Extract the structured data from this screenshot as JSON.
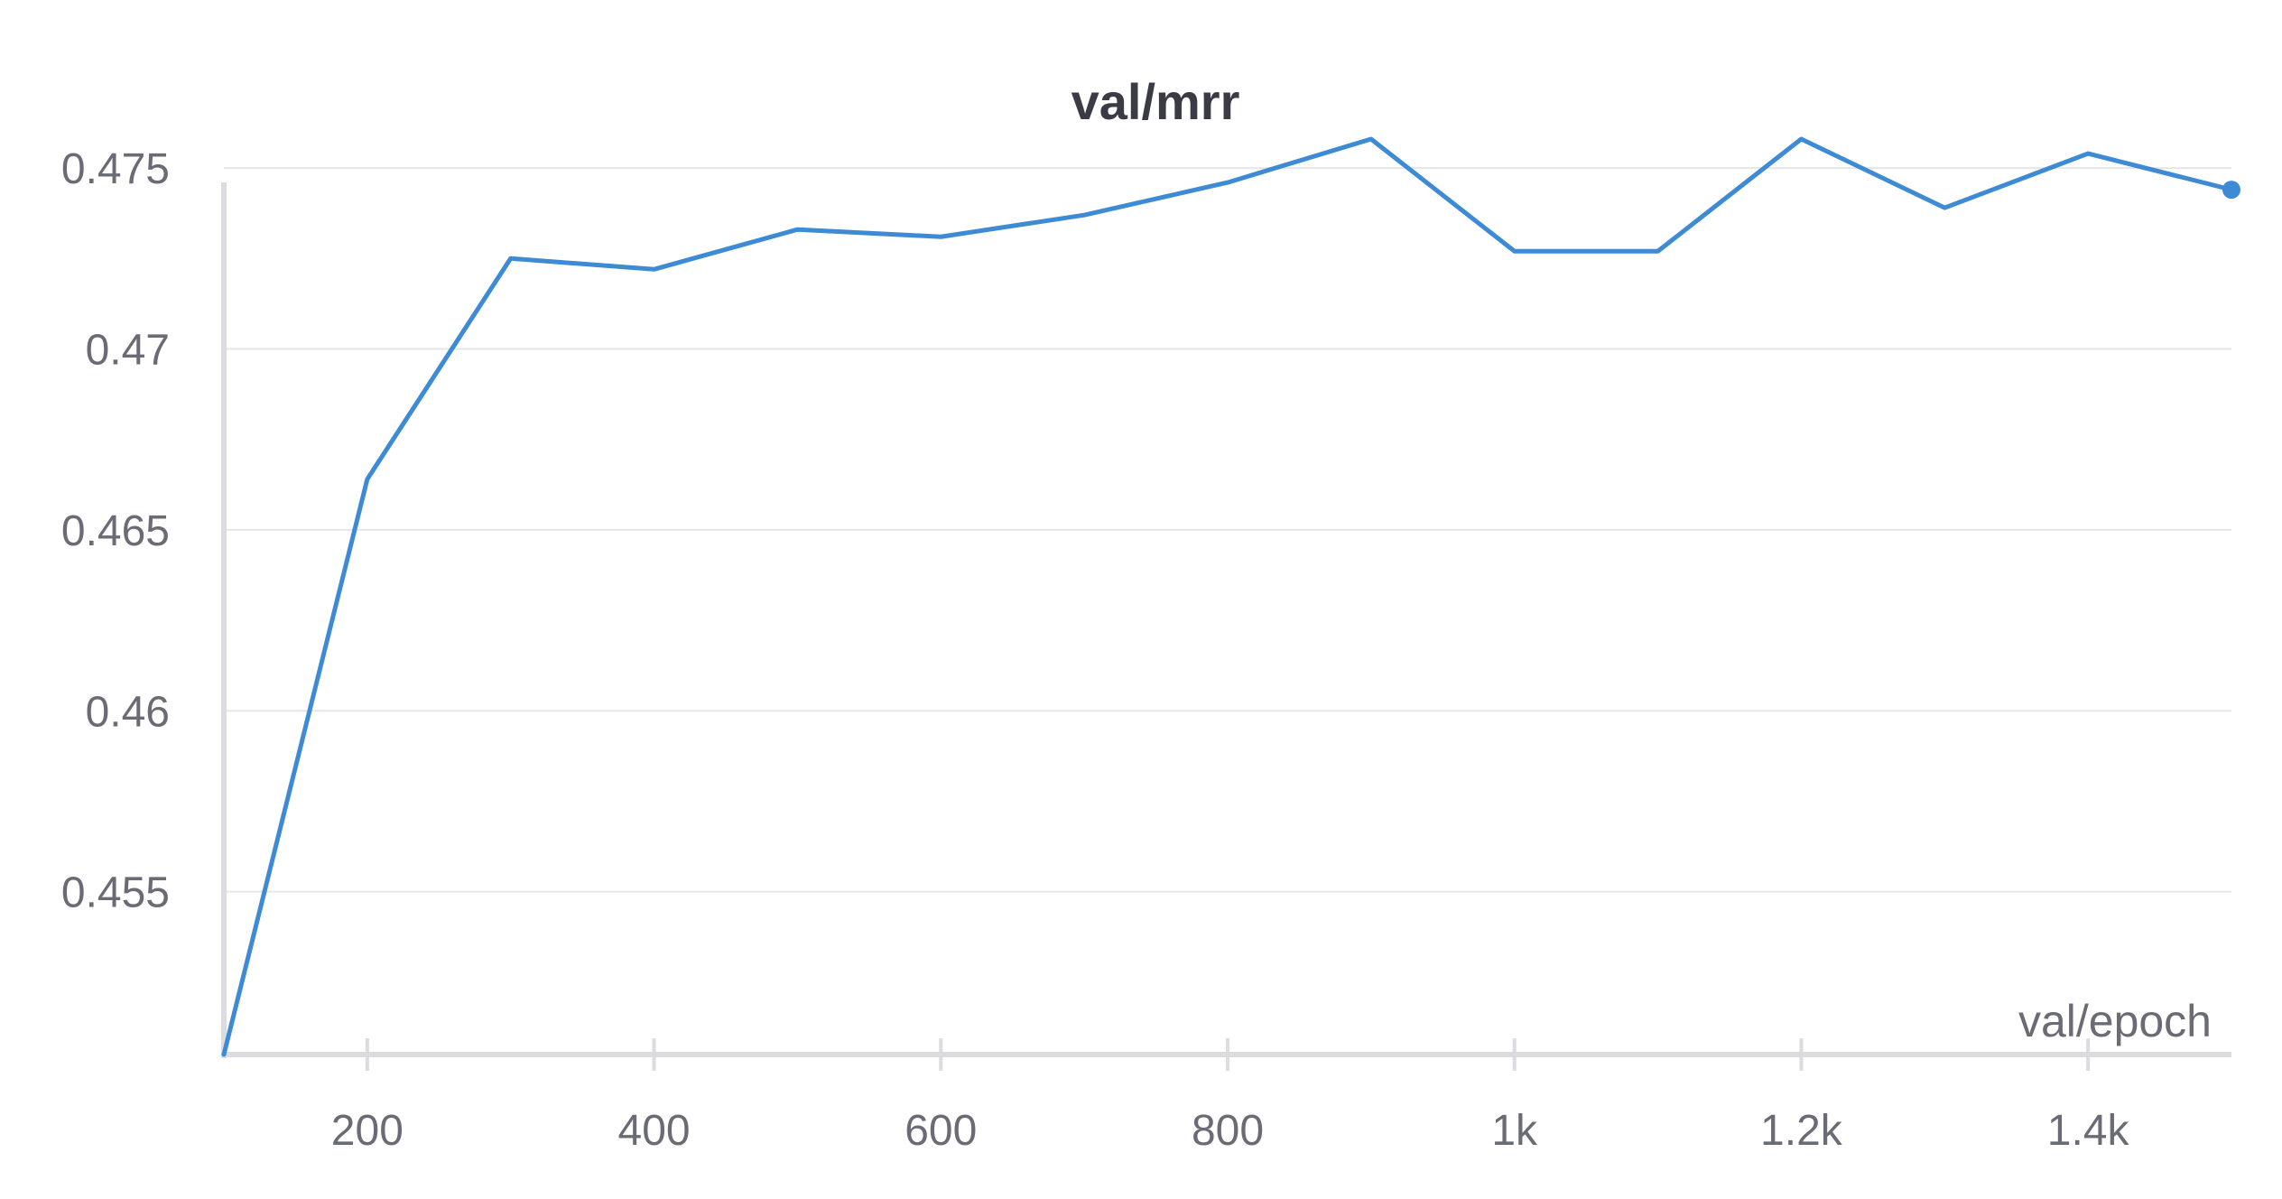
{
  "chart_data": {
    "type": "line",
    "title": "val/mrr",
    "xlabel": "val/epoch",
    "ylabel": "",
    "xlim": [
      100,
      1500
    ],
    "ylim": [
      0.4505,
      0.4759
    ],
    "grid": true,
    "x_ticks": [
      {
        "value": 200,
        "label": "200"
      },
      {
        "value": 400,
        "label": "400"
      },
      {
        "value": 600,
        "label": "600"
      },
      {
        "value": 800,
        "label": "800"
      },
      {
        "value": 1000,
        "label": "1k"
      },
      {
        "value": 1200,
        "label": "1.2k"
      },
      {
        "value": 1400,
        "label": "1.4k"
      }
    ],
    "y_ticks": [
      {
        "value": 0.455,
        "label": "0.455"
      },
      {
        "value": 0.46,
        "label": "0.46"
      },
      {
        "value": 0.465,
        "label": "0.465"
      },
      {
        "value": 0.47,
        "label": "0.47"
      },
      {
        "value": 0.475,
        "label": "0.475"
      }
    ],
    "series": [
      {
        "color": "#3d8bd4",
        "x": [
          100,
          200,
          300,
          400,
          500,
          600,
          700,
          800,
          900,
          1000,
          1100,
          1200,
          1300,
          1400,
          1500
        ],
        "y": [
          0.4505,
          0.4664,
          0.4725,
          0.4722,
          0.4733,
          0.4731,
          0.4737,
          0.4746,
          0.4758,
          0.4727,
          0.4727,
          0.4758,
          0.4739,
          0.4754,
          0.4744
        ]
      }
    ]
  }
}
